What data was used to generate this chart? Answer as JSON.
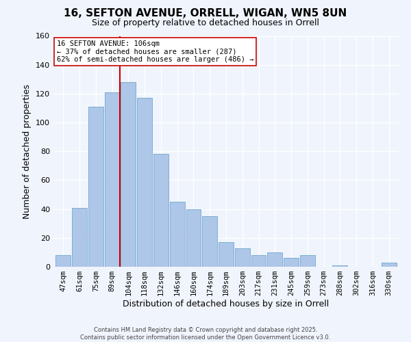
{
  "title": "16, SEFTON AVENUE, ORRELL, WIGAN, WN5 8UN",
  "subtitle": "Size of property relative to detached houses in Orrell",
  "xlabel": "Distribution of detached houses by size in Orrell",
  "ylabel": "Number of detached properties",
  "bar_labels": [
    "47sqm",
    "61sqm",
    "75sqm",
    "89sqm",
    "104sqm",
    "118sqm",
    "132sqm",
    "146sqm",
    "160sqm",
    "174sqm",
    "189sqm",
    "203sqm",
    "217sqm",
    "231sqm",
    "245sqm",
    "259sqm",
    "273sqm",
    "288sqm",
    "302sqm",
    "316sqm",
    "330sqm"
  ],
  "bar_values": [
    8,
    41,
    111,
    121,
    128,
    117,
    78,
    45,
    40,
    35,
    17,
    13,
    8,
    10,
    6,
    8,
    0,
    1,
    0,
    0,
    3
  ],
  "bar_color": "#aec6e8",
  "bar_edge_color": "#7bafd4",
  "reference_line_color": "#cc0000",
  "annotation_line1": "16 SEFTON AVENUE: 106sqm",
  "annotation_line2": "← 37% of detached houses are smaller (287)",
  "annotation_line3": "62% of semi-detached houses are larger (486) →",
  "annotation_box_color": "#ffffff",
  "annotation_box_edge_color": "#cc0000",
  "ylim": [
    0,
    160
  ],
  "yticks": [
    0,
    20,
    40,
    60,
    80,
    100,
    120,
    140,
    160
  ],
  "footer_line1": "Contains HM Land Registry data © Crown copyright and database right 2025.",
  "footer_line2": "Contains public sector information licensed under the Open Government Licence v3.0.",
  "background_color": "#f0f4fc",
  "grid_color": "#ffffff",
  "title_fontsize": 11,
  "subtitle_fontsize": 9
}
